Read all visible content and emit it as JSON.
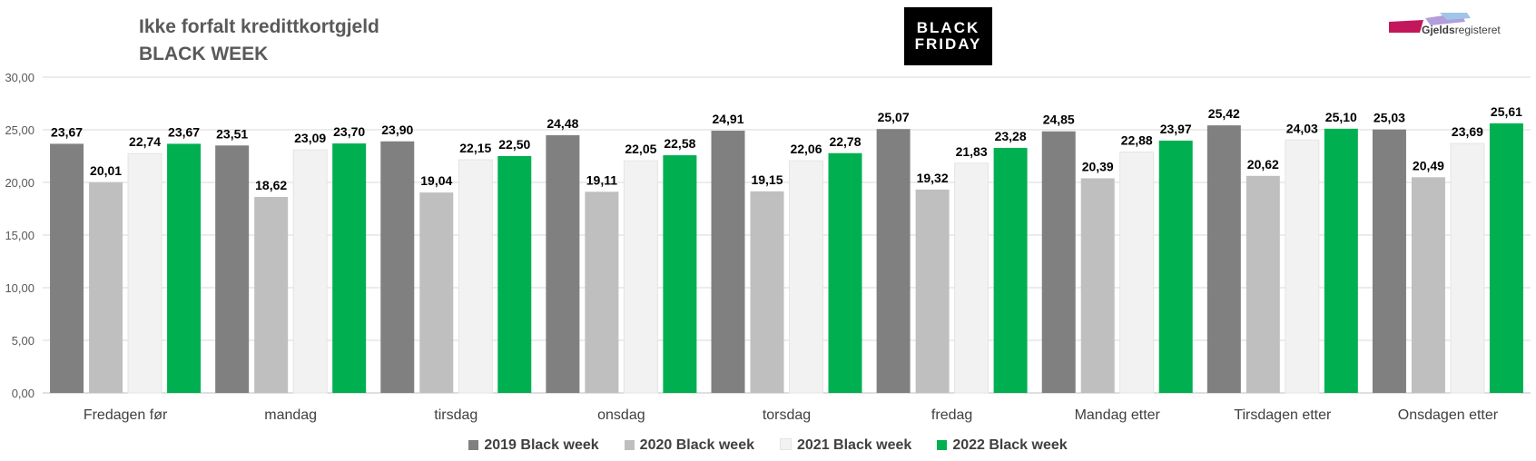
{
  "header": {
    "title_line1": "Ikke forfalt kredittkortgjeld",
    "title_line2": "BLACK WEEK",
    "badge_line1": "BLACK",
    "badge_line2": "FRIDAY",
    "logo_text_part1": "Gjelds",
    "logo_text_part2": "registeret"
  },
  "chart_data": {
    "type": "bar",
    "categories": [
      "Fredagen før",
      "mandag",
      "tirsdag",
      "onsdag",
      "torsdag",
      "fredag",
      "Mandag etter",
      "Tirsdagen etter",
      "Onsdagen etter"
    ],
    "series": [
      {
        "name": "2019 Black week",
        "color": "#808080",
        "values": [
          23.67,
          23.51,
          23.9,
          24.48,
          24.91,
          25.07,
          24.85,
          25.42,
          25.03
        ]
      },
      {
        "name": "2020 Black week",
        "color": "#bfbfbf",
        "values": [
          20.01,
          18.62,
          19.04,
          19.11,
          19.15,
          19.32,
          20.39,
          20.62,
          20.49
        ]
      },
      {
        "name": "2021 Black week",
        "color": "#f2f2f2",
        "values": [
          22.74,
          23.09,
          22.15,
          22.05,
          22.06,
          21.83,
          22.88,
          24.03,
          23.69
        ]
      },
      {
        "name": "2022 Black week",
        "color": "#00b050",
        "values": [
          23.67,
          23.7,
          22.5,
          22.58,
          22.78,
          23.28,
          23.97,
          25.1,
          25.61
        ]
      }
    ],
    "ylim": [
      0,
      30
    ],
    "yticks": [
      "0,00",
      "5,00",
      "10,00",
      "15,00",
      "20,00",
      "25,00",
      "30,00"
    ],
    "grid": true,
    "legend_position": "bottom"
  }
}
